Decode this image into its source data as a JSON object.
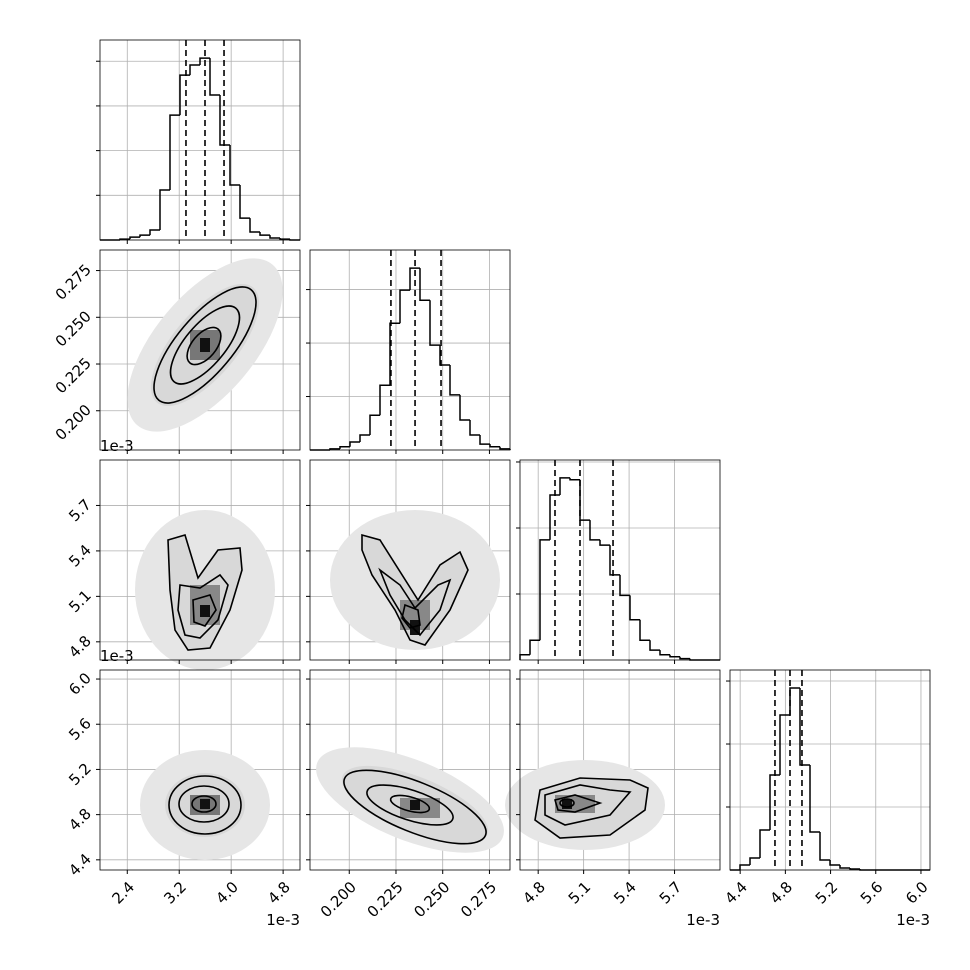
{
  "chart_data": {
    "type": "corner",
    "params": [
      {
        "lim": [
          1.98,
          5.06
        ],
        "ticks": [
          2.4,
          3.2,
          {
            "value": 4.0,
            "label": "4.0"
          },
          4.8
        ],
        "offset_label": "1e-3",
        "quantiles": [
          3.304,
          3.597,
          3.89
        ],
        "hist": {
          "bins": [
            1.98,
            2.134,
            2.288,
            2.442,
            2.596,
            2.75,
            2.904,
            3.058,
            3.212,
            3.366,
            3.52,
            3.674,
            3.828,
            3.982,
            4.136,
            4.29,
            4.444,
            4.598,
            4.752,
            4.906,
            5.06
          ],
          "values": [
            0,
            0,
            4,
            13,
            22,
            45,
            224,
            559,
            738,
            783,
            814,
            649,
            425,
            246,
            98,
            36,
            22,
            9,
            4,
            0
          ],
          "ylim": [
            0,
            895
          ],
          "yticks": [
            200,
            400,
            600,
            800
          ]
        }
      },
      {
        "lim": [
          0.179,
          0.286
        ],
        "ticks": [
          {
            "value": 0.2,
            "label": "0.200"
          },
          {
            "value": 0.225,
            "label": "0.225"
          },
          {
            "value": 0.25,
            "label": "0.250"
          },
          {
            "value": 0.275,
            "label": "0.275"
          }
        ],
        "quantiles": [
          0.2223,
          0.2352,
          0.2491
        ],
        "hist": {
          "bins": [
            0.179,
            0.18435,
            0.1897,
            0.19505,
            0.2004,
            0.20575,
            0.2111,
            0.21645,
            0.2218,
            0.22715,
            0.2325,
            0.23785,
            0.2432,
            0.24855,
            0.2539,
            0.25925,
            0.2646,
            0.26995,
            0.2753,
            0.28065,
            0.286
          ],
          "values": [
            0,
            0,
            2,
            6,
            15,
            28,
            65,
            121,
            237,
            299,
            340,
            280,
            196,
            159,
            103,
            56,
            28,
            11,
            6,
            2
          ],
          "ylim": [
            0,
            374
          ],
          "yticks": [
            100,
            200,
            300
          ]
        }
      },
      {
        "lim": [
          4.68,
          6.0
        ],
        "ticks": [
          4.8,
          5.1,
          5.4,
          5.7
        ],
        "offset_label": "1e-3",
        "quantiles": [
          4.911,
          5.076,
          5.294
        ],
        "hist": {
          "bins": [
            4.68,
            4.746,
            4.812,
            4.878,
            4.944,
            5.01,
            5.076,
            5.142,
            5.208,
            5.274,
            5.34,
            5.406,
            5.472,
            5.538,
            5.604,
            5.67,
            5.736,
            5.802,
            5.868,
            5.934,
            6.0
          ],
          "values": [
            8,
            30,
            182,
            250,
            276,
            273,
            212,
            182,
            174,
            129,
            98,
            61,
            30,
            15,
            8,
            5,
            2,
            0,
            0,
            0
          ],
          "ylim": [
            0,
            303
          ],
          "yticks": [
            100,
            200,
            300
          ]
        }
      },
      {
        "lim": [
          4.31,
          6.08
        ],
        "ticks": [
          4.4,
          4.8,
          5.2,
          5.6,
          {
            "value": 6.0,
            "label": "6.0"
          }
        ],
        "offset_label": "1e-3",
        "quantiles": [
          4.708,
          4.841,
          4.947
        ],
        "hist": {
          "bins": [
            4.31,
            4.3985,
            4.487,
            4.5755,
            4.664,
            4.7525,
            4.841,
            4.9295,
            5.018,
            5.1065,
            5.195,
            5.2835,
            5.372,
            5.4605,
            5.549,
            5.6375,
            5.726,
            5.8145,
            5.903,
            5.9915,
            6.08
          ],
          "values": [
            0,
            79,
            190,
            635,
            1508,
            2460,
            2889,
            1667,
            603,
            159,
            79,
            32,
            16,
            0,
            0,
            0,
            0,
            0,
            0,
            0
          ],
          "ylim": [
            0,
            3175
          ],
          "yticks": [
            1000,
            2000,
            3000
          ]
        }
      }
    ],
    "grid": true,
    "color": "#000000"
  }
}
